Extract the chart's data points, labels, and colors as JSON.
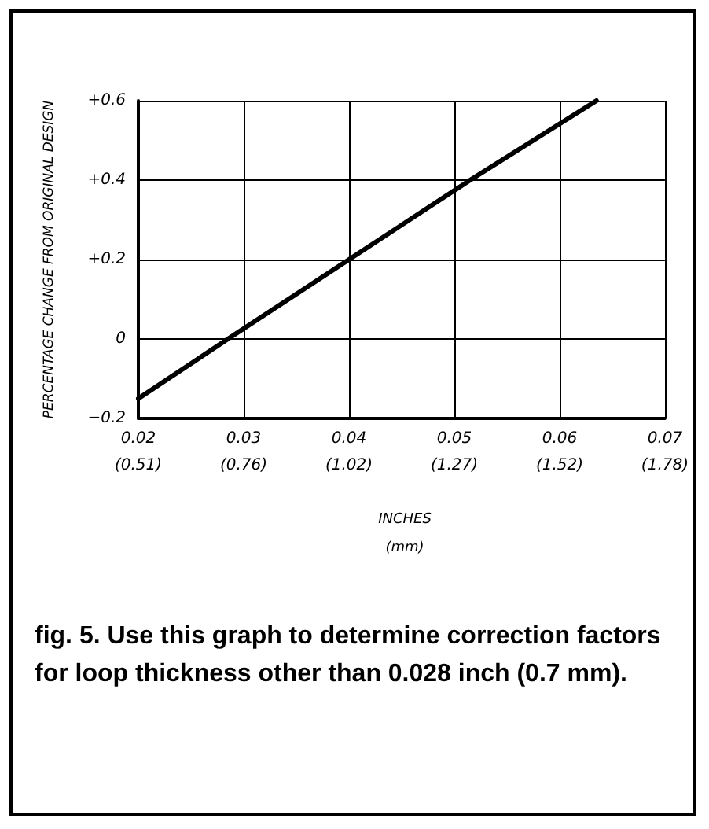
{
  "chart_data": {
    "type": "line",
    "xlabel": "INCHES",
    "x2label": "(mm)",
    "ylabel": "PERCENTAGE CHANGE FROM ORIGINAL DESIGN",
    "series": [
      {
        "color": "#000000",
        "x": [
          0.02,
          0.0285,
          0.04,
          0.0515,
          0.0635
        ],
        "values": [
          -0.15,
          0,
          0.2,
          0.4,
          0.6
        ]
      }
    ],
    "xlim": [
      0.02,
      0.07
    ],
    "xticks": [
      0.02,
      0.03,
      0.04,
      0.05,
      0.06,
      0.07
    ],
    "x2lim": [
      0.508,
      1.778
    ],
    "x2ticks": [
      {
        "value": 0.508,
        "label": "(0.51)"
      },
      {
        "value": 0.762,
        "label": "(0.76)"
      },
      {
        "value": 1.016,
        "label": "(1.02)"
      },
      {
        "value": 1.27,
        "label": "(1.27)"
      },
      {
        "value": 1.524,
        "label": "(1.52)"
      },
      {
        "value": 1.778,
        "label": "(1.78)"
      }
    ],
    "ylim": [
      -0.2,
      0.6
    ],
    "yticks": [
      {
        "value": -0.2,
        "label": "−0.2"
      },
      {
        "value": 0,
        "label": "0"
      },
      {
        "value": 0.2,
        "label": "+0.2"
      },
      {
        "value": 0.4,
        "label": "+0.4"
      },
      {
        "value": 0.6,
        "label": "+0.6"
      }
    ],
    "grid": true,
    "marker": "none",
    "line_style": "solid",
    "annotations": [
      "fig. 5. Use this graph to determine correction factors for loop thickness other than 0.028 inch (0.7 mm)."
    ]
  }
}
